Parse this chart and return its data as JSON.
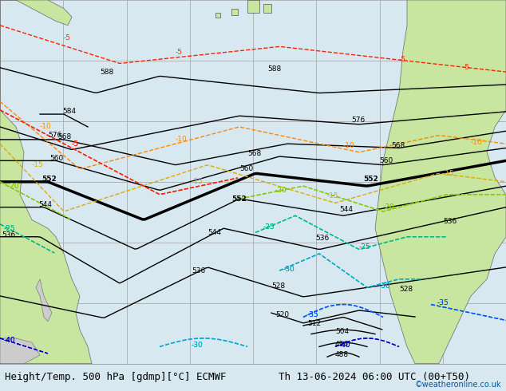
{
  "title_left": "Height/Temp. 500 hPa [gdmp][°C] ECMWF",
  "title_right": "Th 13-06-2024 06:00 UTC (00+T50)",
  "credit": "©weatheronline.co.uk",
  "bg_land": "#c8e6a0",
  "bg_sea": "#d8e8f0",
  "bg_gray": "#cccccc",
  "grid_color": "#a0a0a0",
  "contour_color": "#000000",
  "thick_contour_color": "#000000",
  "temp_neg5_color": "#ff2200",
  "temp_neg10_color": "#ff8800",
  "temp_neg15_color": "#ddaa00",
  "temp_neg20_color": "#88cc00",
  "temp_neg25_color": "#00bb88",
  "temp_neg30_color": "#00aacc",
  "temp_neg35_color": "#0055ff",
  "temp_neg40_color": "#0000cc",
  "title_fontsize": 9,
  "label_fontsize": 7.5,
  "figwidth": 6.34,
  "figheight": 4.9,
  "dpi": 100,
  "bottom_bar_color": "#f0f0f0",
  "bottom_bar_height": 0.07
}
